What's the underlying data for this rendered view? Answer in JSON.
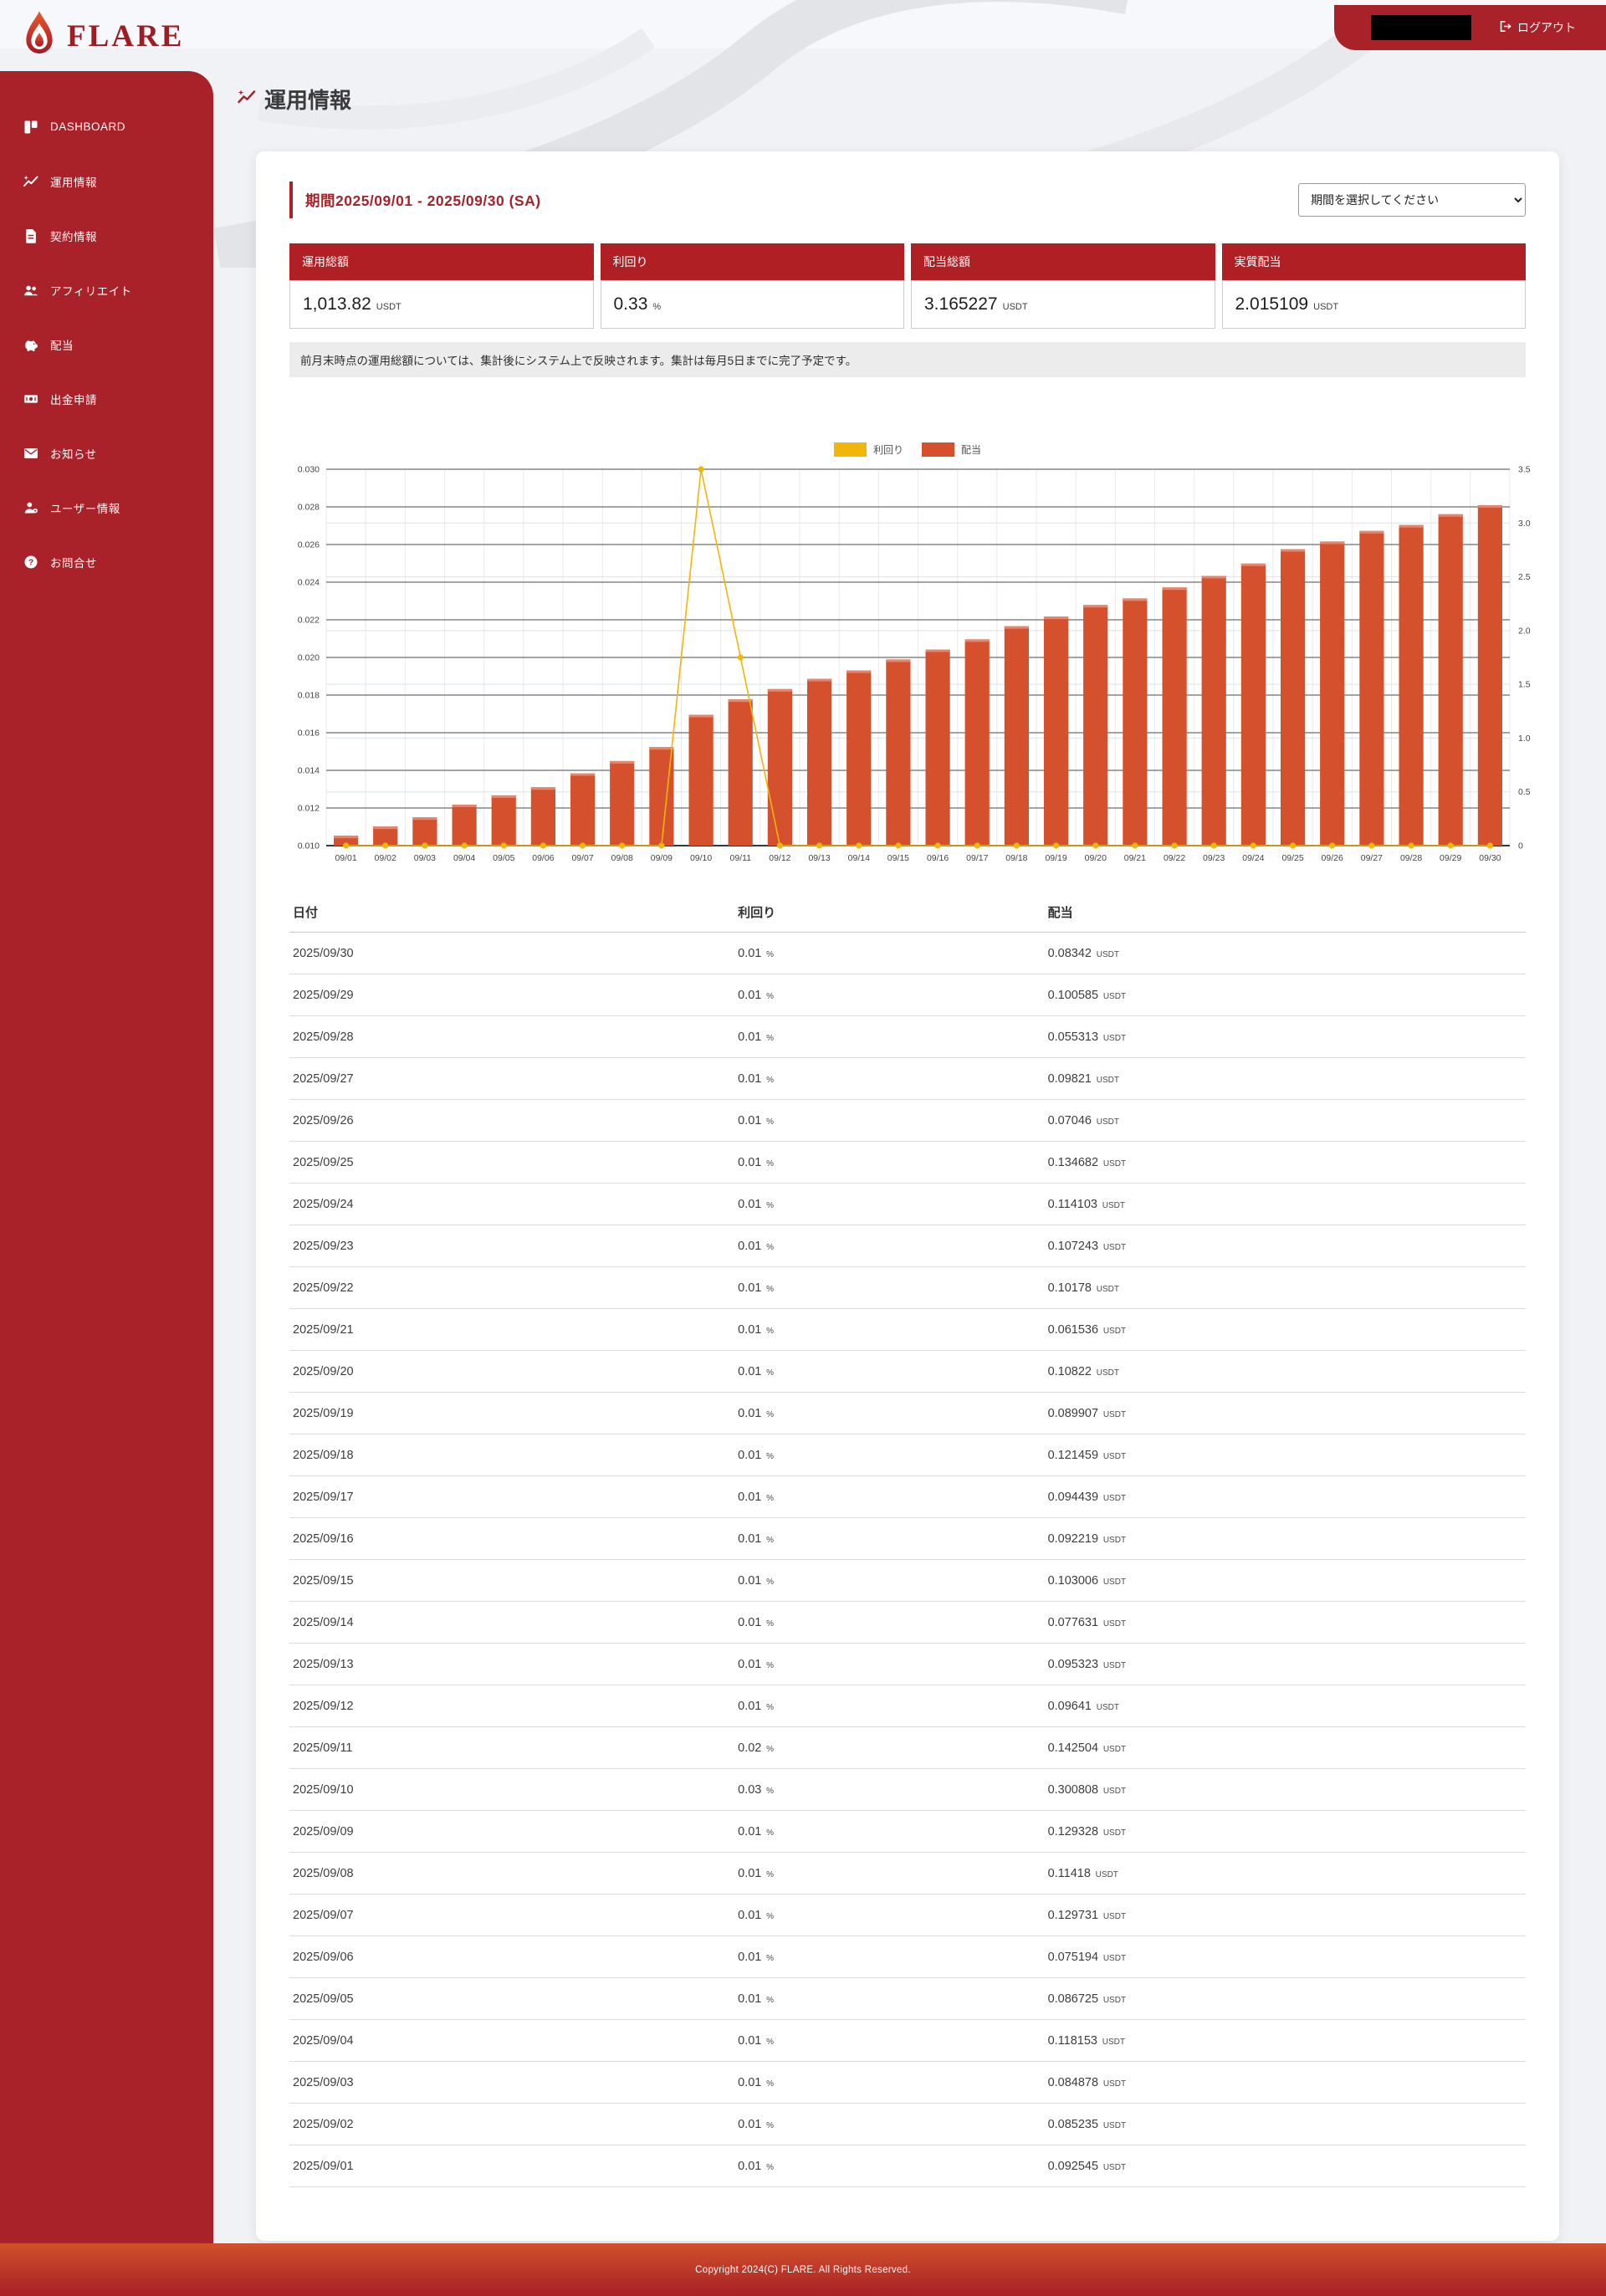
{
  "brand": {
    "name": "FLARE"
  },
  "header": {
    "logout_label": "ログアウト"
  },
  "sidebar": {
    "items": [
      {
        "id": "dashboard",
        "label": "DASHBOARD",
        "icon": "dashboard-icon"
      },
      {
        "id": "operation-info",
        "label": "運用情報",
        "icon": "chart-sparkle-icon",
        "active": true
      },
      {
        "id": "contract-info",
        "label": "契約情報",
        "icon": "document-icon"
      },
      {
        "id": "affiliate",
        "label": "アフィリエイト",
        "icon": "people-icon"
      },
      {
        "id": "dividend",
        "label": "配当",
        "icon": "piggy-bank-icon"
      },
      {
        "id": "withdrawal",
        "label": "出金申請",
        "icon": "banknote-icon"
      },
      {
        "id": "news",
        "label": "お知らせ",
        "icon": "envelope-icon"
      },
      {
        "id": "user-info",
        "label": "ユーザー情報",
        "icon": "user-gear-icon"
      },
      {
        "id": "contact",
        "label": "お問合せ",
        "icon": "help-icon"
      }
    ]
  },
  "page": {
    "title": "運用情報"
  },
  "period": {
    "label": "期間2025/09/01 - 2025/09/30 (SA)",
    "select_placeholder": "期間を選択してください"
  },
  "summary": [
    {
      "label": "運用総額",
      "value": "1,013.82",
      "unit": "USDT"
    },
    {
      "label": "利回り",
      "value": "0.33",
      "unit": "%"
    },
    {
      "label": "配当総額",
      "value": "3.165227",
      "unit": "USDT"
    },
    {
      "label": "実質配当",
      "value": "2.015109",
      "unit": "USDT"
    }
  ],
  "note": "前月末時点の運用総額については、集計後にシステム上で反映されます。集計は毎月5日までに完了予定です。",
  "chart_data": {
    "type": "bar+line",
    "categories": [
      "09/01",
      "09/02",
      "09/03",
      "09/04",
      "09/05",
      "09/06",
      "09/07",
      "09/08",
      "09/09",
      "09/10",
      "09/11",
      "09/12",
      "09/13",
      "09/14",
      "09/15",
      "09/16",
      "09/17",
      "09/18",
      "09/19",
      "09/20",
      "09/21",
      "09/22",
      "09/23",
      "09/24",
      "09/25",
      "09/26",
      "09/27",
      "09/28",
      "09/29",
      "09/30"
    ],
    "series": [
      {
        "name": "利回り",
        "type": "line",
        "axis": "left",
        "color": "#F0B60A",
        "values": [
          0.01,
          0.01,
          0.01,
          0.01,
          0.01,
          0.01,
          0.01,
          0.01,
          0.01,
          0.03,
          0.02,
          0.01,
          0.01,
          0.01,
          0.01,
          0.01,
          0.01,
          0.01,
          0.01,
          0.01,
          0.01,
          0.01,
          0.01,
          0.01,
          0.01,
          0.01,
          0.01,
          0.01,
          0.01,
          0.01
        ]
      },
      {
        "name": "配当",
        "type": "bar",
        "axis": "right",
        "color": "#D5512D",
        "values": [
          0.092545,
          0.17778,
          0.262658,
          0.380811,
          0.467536,
          0.54273,
          0.672461,
          0.786641,
          0.915969,
          1.216777,
          1.359281,
          1.455691,
          1.551014,
          1.628645,
          1.731651,
          1.82387,
          1.918309,
          2.039768,
          2.129675,
          2.237895,
          2.299431,
          2.401211,
          2.508454,
          2.622557,
          2.757239,
          2.827699,
          2.925909,
          2.981222,
          3.081807,
          3.165227
        ]
      }
    ],
    "left_axis": {
      "min": 0.01,
      "max": 0.03,
      "step": 0.002
    },
    "right_axis": {
      "min": 0,
      "max": 3.5,
      "step": 0.5
    },
    "grid": true,
    "legend_position": "top"
  },
  "table": {
    "columns": [
      "日付",
      "利回り",
      "配当"
    ],
    "unit_percent": "%",
    "unit_usdt": "USDT",
    "rows": [
      {
        "date": "2025/09/30",
        "yield": "0.01",
        "dividend": "0.08342"
      },
      {
        "date": "2025/09/29",
        "yield": "0.01",
        "dividend": "0.100585"
      },
      {
        "date": "2025/09/28",
        "yield": "0.01",
        "dividend": "0.055313"
      },
      {
        "date": "2025/09/27",
        "yield": "0.01",
        "dividend": "0.09821"
      },
      {
        "date": "2025/09/26",
        "yield": "0.01",
        "dividend": "0.07046"
      },
      {
        "date": "2025/09/25",
        "yield": "0.01",
        "dividend": "0.134682"
      },
      {
        "date": "2025/09/24",
        "yield": "0.01",
        "dividend": "0.114103"
      },
      {
        "date": "2025/09/23",
        "yield": "0.01",
        "dividend": "0.107243"
      },
      {
        "date": "2025/09/22",
        "yield": "0.01",
        "dividend": "0.10178"
      },
      {
        "date": "2025/09/21",
        "yield": "0.01",
        "dividend": "0.061536"
      },
      {
        "date": "2025/09/20",
        "yield": "0.01",
        "dividend": "0.10822"
      },
      {
        "date": "2025/09/19",
        "yield": "0.01",
        "dividend": "0.089907"
      },
      {
        "date": "2025/09/18",
        "yield": "0.01",
        "dividend": "0.121459"
      },
      {
        "date": "2025/09/17",
        "yield": "0.01",
        "dividend": "0.094439"
      },
      {
        "date": "2025/09/16",
        "yield": "0.01",
        "dividend": "0.092219"
      },
      {
        "date": "2025/09/15",
        "yield": "0.01",
        "dividend": "0.103006"
      },
      {
        "date": "2025/09/14",
        "yield": "0.01",
        "dividend": "0.077631"
      },
      {
        "date": "2025/09/13",
        "yield": "0.01",
        "dividend": "0.095323"
      },
      {
        "date": "2025/09/12",
        "yield": "0.01",
        "dividend": "0.09641"
      },
      {
        "date": "2025/09/11",
        "yield": "0.02",
        "dividend": "0.142504"
      },
      {
        "date": "2025/09/10",
        "yield": "0.03",
        "dividend": "0.300808"
      },
      {
        "date": "2025/09/09",
        "yield": "0.01",
        "dividend": "0.129328"
      },
      {
        "date": "2025/09/08",
        "yield": "0.01",
        "dividend": "0.11418"
      },
      {
        "date": "2025/09/07",
        "yield": "0.01",
        "dividend": "0.129731"
      },
      {
        "date": "2025/09/06",
        "yield": "0.01",
        "dividend": "0.075194"
      },
      {
        "date": "2025/09/05",
        "yield": "0.01",
        "dividend": "0.086725"
      },
      {
        "date": "2025/09/04",
        "yield": "0.01",
        "dividend": "0.118153"
      },
      {
        "date": "2025/09/03",
        "yield": "0.01",
        "dividend": "0.084878"
      },
      {
        "date": "2025/09/02",
        "yield": "0.01",
        "dividend": "0.085235"
      },
      {
        "date": "2025/09/01",
        "yield": "0.01",
        "dividend": "0.092545"
      }
    ]
  },
  "footer": {
    "copyright": "Copyright 2024(C) FLARE. All Rights Reserved."
  },
  "colors": {
    "sidebar_red": "#A92129",
    "accent_red": "#B01F24",
    "period_red": "#A4242C",
    "bar_orange": "#D5512D",
    "line_yellow": "#F0B60A"
  }
}
